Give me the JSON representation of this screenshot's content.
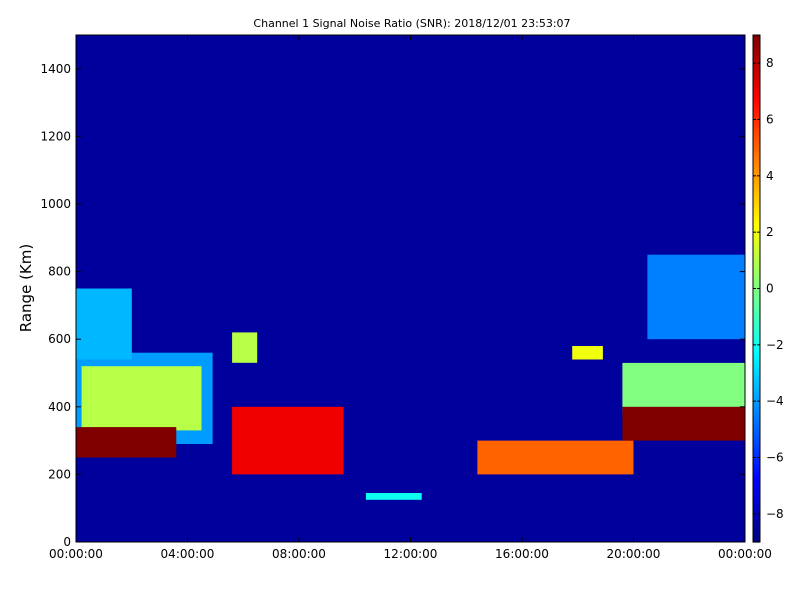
{
  "chart_data": {
    "type": "heatmap",
    "title": "Channel 1 Signal Noise Ratio (SNR): 2018/12/01 23:53:07",
    "xlabel": "",
    "ylabel": "Range (Km)",
    "x_ticks": [
      "00:00:00",
      "04:00:00",
      "08:00:00",
      "12:00:00",
      "16:00:00",
      "20:00:00",
      "00:00:00"
    ],
    "y_ticks": [
      0,
      200,
      400,
      600,
      800,
      1000,
      1200,
      1400
    ],
    "colorbar_ticks": [
      8,
      6,
      4,
      2,
      0,
      -2,
      -4,
      -6,
      -8
    ],
    "xlim_hours": [
      0,
      24
    ],
    "ylim": [
      0,
      1500
    ],
    "clim": [
      -9,
      9
    ],
    "colormap": "jet",
    "background_value": -8.5,
    "features": [
      {
        "desc": "core",
        "t0": 0,
        "t1": 3.6,
        "r0": 250,
        "r1": 340,
        "snr": 9
      },
      {
        "desc": "upper",
        "t0": 0.2,
        "t1": 4.5,
        "r0": 330,
        "r1": 520,
        "snr": 1
      },
      {
        "desc": "halo",
        "t0": 0,
        "t1": 4.9,
        "r0": 290,
        "r1": 560,
        "snr": -4
      },
      {
        "desc": "plume",
        "t0": 0,
        "t1": 2.0,
        "r0": 540,
        "r1": 750,
        "snr": -3.5
      },
      {
        "desc": "arc",
        "t0": 5.6,
        "t1": 6.5,
        "r0": 530,
        "r1": 620,
        "snr": 1
      },
      {
        "desc": "descent",
        "t0": 5.6,
        "t1": 9.6,
        "r0": 200,
        "r1": 400,
        "snr": 7
      },
      {
        "desc": "low",
        "t0": 10.4,
        "t1": 12.4,
        "r0": 125,
        "r1": 145,
        "snr": -2
      },
      {
        "desc": "rise",
        "t0": 14.4,
        "t1": 20.0,
        "r0": 200,
        "r1": 300,
        "snr": 5
      },
      {
        "desc": "mid",
        "t0": 17.8,
        "t1": 18.9,
        "r0": 540,
        "r1": 580,
        "snr": 2
      },
      {
        "desc": "core2",
        "t0": 19.6,
        "t1": 24,
        "r0": 300,
        "r1": 400,
        "snr": 9
      },
      {
        "desc": "upper2",
        "t0": 19.6,
        "t1": 24,
        "r0": 380,
        "r1": 530,
        "snr": 0
      },
      {
        "desc": "plume2",
        "t0": 20.5,
        "t1": 24,
        "r0": 600,
        "r1": 850,
        "snr": -4.5
      }
    ]
  }
}
